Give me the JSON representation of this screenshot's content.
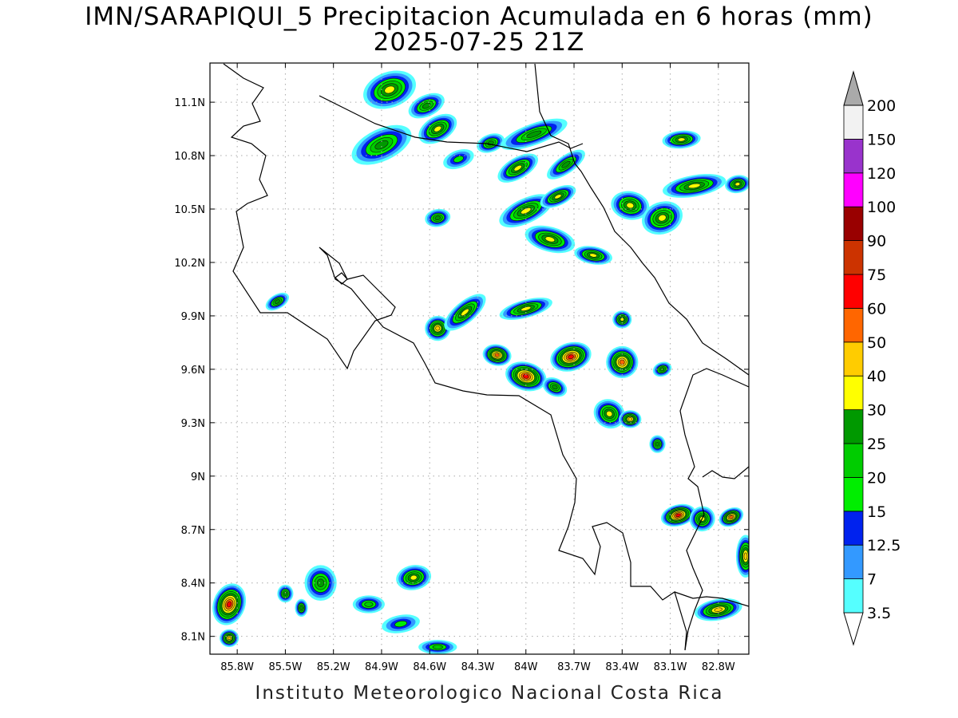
{
  "title": {
    "line1": "IMN/SARAPIQUI_5 Precipitacion Acumulada en 6 horas (mm)",
    "line2": "2025-07-25 21Z"
  },
  "footer": "Instituto Meteorologico Nacional Costa Rica",
  "map": {
    "lon_range": [
      -85.97,
      -82.61
    ],
    "lat_range": [
      8.0,
      11.32
    ],
    "lon_ticks": [
      {
        "value": -85.8,
        "label": "85.8W"
      },
      {
        "value": -85.5,
        "label": "85.5W"
      },
      {
        "value": -85.2,
        "label": "85.2W"
      },
      {
        "value": -84.9,
        "label": "84.9W"
      },
      {
        "value": -84.6,
        "label": "84.6W"
      },
      {
        "value": -84.3,
        "label": "84.3W"
      },
      {
        "value": -84.0,
        "label": "84W"
      },
      {
        "value": -83.7,
        "label": "83.7W"
      },
      {
        "value": -83.4,
        "label": "83.4W"
      },
      {
        "value": -83.1,
        "label": "83.1W"
      },
      {
        "value": -82.8,
        "label": "82.8W"
      }
    ],
    "lat_ticks": [
      {
        "value": 8.1,
        "label": "8.1N"
      },
      {
        "value": 8.4,
        "label": "8.4N"
      },
      {
        "value": 8.7,
        "label": "8.7N"
      },
      {
        "value": 9.0,
        "label": "9N"
      },
      {
        "value": 9.3,
        "label": "9.3N"
      },
      {
        "value": 9.6,
        "label": "9.6N"
      },
      {
        "value": 9.9,
        "label": "9.9N"
      },
      {
        "value": 10.2,
        "label": "10.2N"
      },
      {
        "value": 10.5,
        "label": "10.5N"
      },
      {
        "value": 10.8,
        "label": "10.8N"
      },
      {
        "value": 11.1,
        "label": "11.1N"
      }
    ],
    "grid": true,
    "coast_color": "#000000"
  },
  "colorbar": {
    "labels": [
      "3.5",
      "7",
      "12.5",
      "15",
      "20",
      "25",
      "30",
      "40",
      "50",
      "60",
      "75",
      "90",
      "100",
      "120",
      "150",
      "200"
    ],
    "colors": [
      "#55ffff",
      "#3399ff",
      "#0022ee",
      "#00ee00",
      "#00cc00",
      "#009900",
      "#ffff00",
      "#ffcc00",
      "#ff6600",
      "#ff0000",
      "#cc3300",
      "#990000",
      "#ff00ff",
      "#9933cc",
      "#f2f2f2",
      "#aaaaaa"
    ]
  },
  "chart_data": {
    "type": "heatmap",
    "title": "IMN/SARAPIQUI_5 Precipitacion Acumulada en 6 horas (mm)",
    "subtitle": "2025-07-25 21Z",
    "xlim": [
      -85.97,
      -82.61
    ],
    "ylim": [
      8.0,
      11.32
    ],
    "units": "mm",
    "levels": [
      3.5,
      7,
      12.5,
      15,
      20,
      25,
      30,
      40,
      50,
      60,
      75,
      90,
      100,
      120,
      150,
      200
    ],
    "rain_cells": [
      {
        "lon": -84.85,
        "lat": 11.17,
        "max_mm": 35,
        "rx": 0.17,
        "ry": 0.1,
        "rot": -20
      },
      {
        "lon": -84.62,
        "lat": 11.08,
        "max_mm": 25,
        "rx": 0.12,
        "ry": 0.06,
        "rot": -25
      },
      {
        "lon": -84.9,
        "lat": 10.86,
        "max_mm": 25,
        "rx": 0.2,
        "ry": 0.09,
        "rot": -25
      },
      {
        "lon": -84.55,
        "lat": 10.95,
        "max_mm": 35,
        "rx": 0.13,
        "ry": 0.07,
        "rot": -30
      },
      {
        "lon": -84.22,
        "lat": 10.87,
        "max_mm": 25,
        "rx": 0.09,
        "ry": 0.05,
        "rot": -20
      },
      {
        "lon": -83.95,
        "lat": 10.92,
        "max_mm": 25,
        "rx": 0.22,
        "ry": 0.06,
        "rot": -20
      },
      {
        "lon": -84.05,
        "lat": 10.73,
        "max_mm": 35,
        "rx": 0.14,
        "ry": 0.06,
        "rot": -30
      },
      {
        "lon": -83.75,
        "lat": 10.75,
        "max_mm": 25,
        "rx": 0.14,
        "ry": 0.05,
        "rot": -35
      },
      {
        "lon": -84.42,
        "lat": 10.78,
        "max_mm": 15,
        "rx": 0.1,
        "ry": 0.05,
        "rot": -20
      },
      {
        "lon": -84.55,
        "lat": 10.45,
        "max_mm": 25,
        "rx": 0.08,
        "ry": 0.05,
        "rot": -10
      },
      {
        "lon": -84.0,
        "lat": 10.49,
        "max_mm": 35,
        "rx": 0.18,
        "ry": 0.07,
        "rot": -25
      },
      {
        "lon": -83.8,
        "lat": 10.57,
        "max_mm": 30,
        "rx": 0.12,
        "ry": 0.05,
        "rot": -25
      },
      {
        "lon": -83.85,
        "lat": 10.33,
        "max_mm": 35,
        "rx": 0.16,
        "ry": 0.07,
        "rot": 15
      },
      {
        "lon": -83.58,
        "lat": 10.24,
        "max_mm": 35,
        "rx": 0.12,
        "ry": 0.05,
        "rot": 10
      },
      {
        "lon": -83.35,
        "lat": 10.52,
        "max_mm": 30,
        "rx": 0.12,
        "ry": 0.08,
        "rot": 10
      },
      {
        "lon": -83.15,
        "lat": 10.45,
        "max_mm": 35,
        "rx": 0.13,
        "ry": 0.09,
        "rot": -20
      },
      {
        "lon": -82.95,
        "lat": 10.63,
        "max_mm": 30,
        "rx": 0.2,
        "ry": 0.06,
        "rot": -10
      },
      {
        "lon": -82.68,
        "lat": 10.64,
        "max_mm": 35,
        "rx": 0.08,
        "ry": 0.05,
        "rot": -10
      },
      {
        "lon": -83.03,
        "lat": 10.89,
        "max_mm": 35,
        "rx": 0.12,
        "ry": 0.05,
        "rot": -5
      },
      {
        "lon": -85.55,
        "lat": 9.98,
        "max_mm": 25,
        "rx": 0.08,
        "ry": 0.04,
        "rot": -30
      },
      {
        "lon": -84.55,
        "lat": 9.83,
        "max_mm": 40,
        "rx": 0.08,
        "ry": 0.07,
        "rot": -10
      },
      {
        "lon": -84.38,
        "lat": 9.92,
        "max_mm": 30,
        "rx": 0.16,
        "ry": 0.06,
        "rot": -40
      },
      {
        "lon": -84.0,
        "lat": 9.94,
        "max_mm": 35,
        "rx": 0.17,
        "ry": 0.05,
        "rot": -15
      },
      {
        "lon": -84.18,
        "lat": 9.68,
        "max_mm": 50,
        "rx": 0.09,
        "ry": 0.06,
        "rot": 10
      },
      {
        "lon": -84.0,
        "lat": 9.56,
        "max_mm": 60,
        "rx": 0.13,
        "ry": 0.08,
        "rot": 15
      },
      {
        "lon": -83.72,
        "lat": 9.67,
        "max_mm": 60,
        "rx": 0.13,
        "ry": 0.08,
        "rot": -15
      },
      {
        "lon": -83.82,
        "lat": 9.5,
        "max_mm": 25,
        "rx": 0.08,
        "ry": 0.05,
        "rot": 25
      },
      {
        "lon": -83.4,
        "lat": 9.64,
        "max_mm": 50,
        "rx": 0.1,
        "ry": 0.09,
        "rot": -20
      },
      {
        "lon": -83.48,
        "lat": 9.35,
        "max_mm": 30,
        "rx": 0.1,
        "ry": 0.08,
        "rot": 30
      },
      {
        "lon": -83.35,
        "lat": 9.32,
        "max_mm": 40,
        "rx": 0.07,
        "ry": 0.05,
        "rot": 0
      },
      {
        "lon": -83.4,
        "lat": 9.88,
        "max_mm": 30,
        "rx": 0.06,
        "ry": 0.05,
        "rot": 0
      },
      {
        "lon": -83.15,
        "lat": 9.6,
        "max_mm": 25,
        "rx": 0.06,
        "ry": 0.04,
        "rot": -20
      },
      {
        "lon": -83.18,
        "lat": 9.18,
        "max_mm": 25,
        "rx": 0.05,
        "ry": 0.05,
        "rot": 0
      },
      {
        "lon": -83.05,
        "lat": 8.78,
        "max_mm": 60,
        "rx": 0.11,
        "ry": 0.06,
        "rot": -15
      },
      {
        "lon": -82.9,
        "lat": 8.76,
        "max_mm": 35,
        "rx": 0.08,
        "ry": 0.07,
        "rot": -25
      },
      {
        "lon": -82.72,
        "lat": 8.77,
        "max_mm": 50,
        "rx": 0.08,
        "ry": 0.05,
        "rot": -25
      },
      {
        "lon": -82.63,
        "lat": 8.55,
        "max_mm": 40,
        "rx": 0.06,
        "ry": 0.12,
        "rot": 0
      },
      {
        "lon": -82.8,
        "lat": 8.25,
        "max_mm": 40,
        "rx": 0.15,
        "ry": 0.06,
        "rot": -10
      },
      {
        "lon": -85.85,
        "lat": 8.28,
        "max_mm": 60,
        "rx": 0.1,
        "ry": 0.12,
        "rot": 20
      },
      {
        "lon": -85.85,
        "lat": 8.09,
        "max_mm": 40,
        "rx": 0.06,
        "ry": 0.05,
        "rot": 0
      },
      {
        "lon": -85.28,
        "lat": 8.4,
        "max_mm": 25,
        "rx": 0.1,
        "ry": 0.1,
        "rot": 0
      },
      {
        "lon": -85.5,
        "lat": 8.34,
        "max_mm": 25,
        "rx": 0.05,
        "ry": 0.05,
        "rot": 0
      },
      {
        "lon": -85.4,
        "lat": 8.26,
        "max_mm": 25,
        "rx": 0.04,
        "ry": 0.05,
        "rot": 0
      },
      {
        "lon": -84.7,
        "lat": 8.43,
        "max_mm": 30,
        "rx": 0.11,
        "ry": 0.07,
        "rot": -10
      },
      {
        "lon": -84.98,
        "lat": 8.28,
        "max_mm": 20,
        "rx": 0.1,
        "ry": 0.05,
        "rot": 0
      },
      {
        "lon": -84.78,
        "lat": 8.17,
        "max_mm": 15,
        "rx": 0.12,
        "ry": 0.05,
        "rot": -10
      },
      {
        "lon": -84.55,
        "lat": 8.04,
        "max_mm": 20,
        "rx": 0.12,
        "ry": 0.04,
        "rot": 0
      }
    ]
  }
}
